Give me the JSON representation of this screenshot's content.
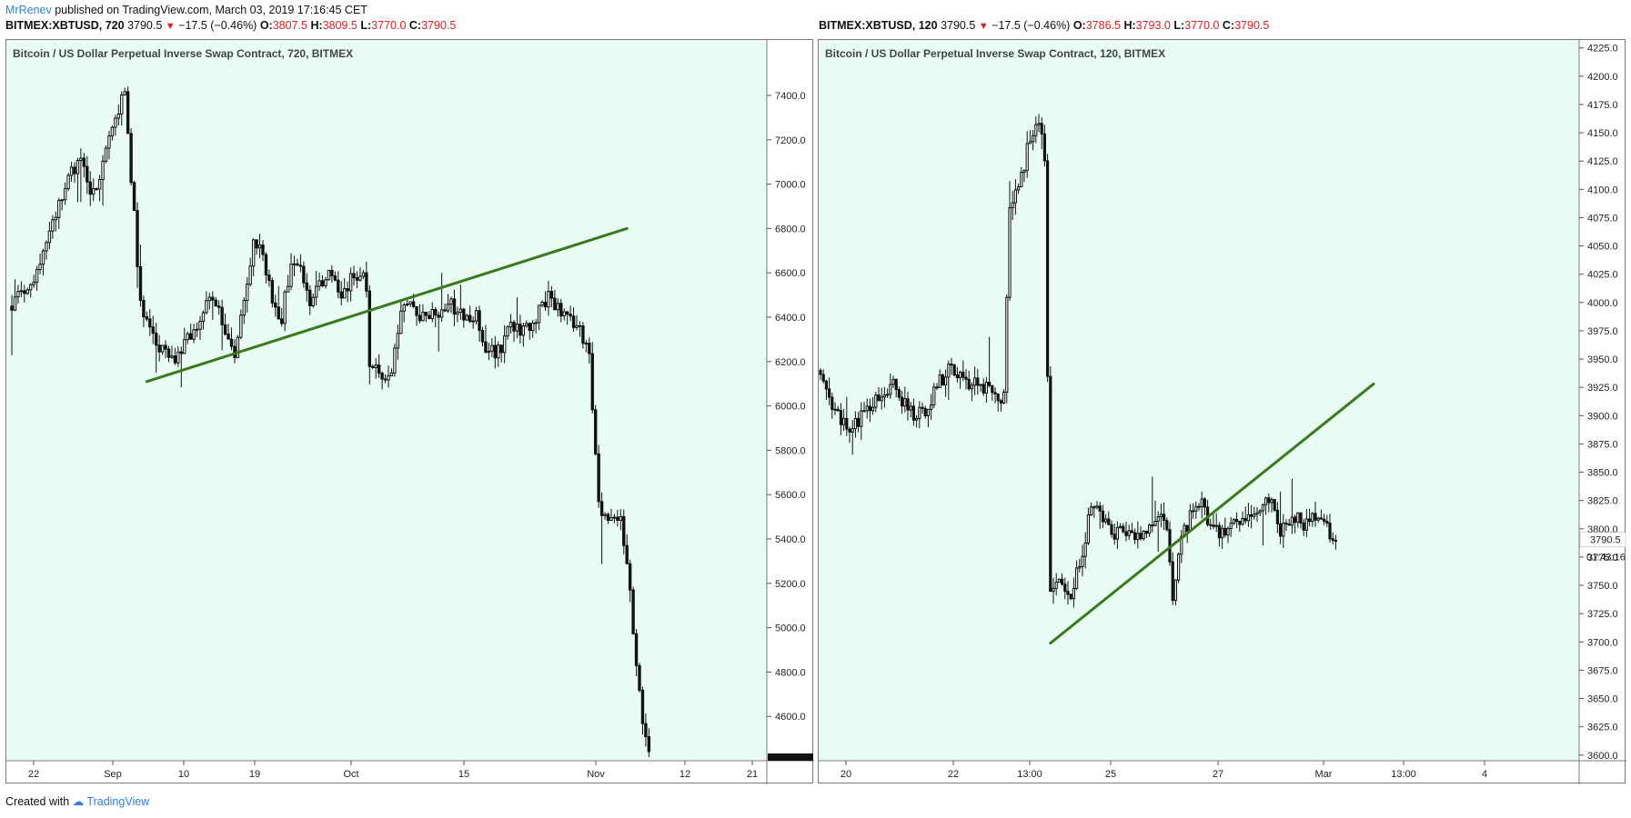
{
  "header": {
    "author": "MrRenev",
    "published_text": "published on TradingView.com, March 03, 2019 17:16:45 CET"
  },
  "footer": {
    "created_with": "Created with",
    "brand": "TradingView"
  },
  "colors": {
    "plot_bg": "#e8fcf4",
    "green_line": "#3a7a1e",
    "down_red": "#e01f1f",
    "brand_blue": "#2f7ed8",
    "candle": "#111111"
  },
  "chart_data": [
    {
      "type": "candlestick",
      "symbol": "BITMEX:XBTUSD",
      "interval": "720",
      "title": "Bitcoin / US Dollar Perpetual Inverse Swap Contract, 720, BITMEX",
      "legend": {
        "symbol_label": "BITMEX:XBTUSD, 720",
        "last": "3790.5",
        "change": "−17.5 (−0.46%)",
        "open": "3807.5",
        "high": "3809.5",
        "low": "3770.0",
        "close": "3790.5"
      },
      "ylim": [
        4400,
        7650
      ],
      "y_ticks": [
        "7400.0",
        "7200.0",
        "7000.0",
        "6800.0",
        "6600.0",
        "6400.0",
        "6200.0",
        "6000.0",
        "5800.0",
        "5600.0",
        "5400.0",
        "5200.0",
        "5000.0",
        "4800.0",
        "4600.0"
      ],
      "x_ticks": [
        "22",
        "Sep",
        "10",
        "19",
        "Oct",
        "15",
        "Nov",
        "12",
        "21"
      ],
      "price_path": [
        [
          0,
          6450
        ],
        [
          3,
          6500
        ],
        [
          6,
          6550
        ],
        [
          10,
          6700
        ],
        [
          14,
          6850
        ],
        [
          18,
          7050
        ],
        [
          22,
          7100
        ],
        [
          26,
          6950
        ],
        [
          30,
          7150
        ],
        [
          33,
          7300
        ],
        [
          36,
          7450
        ],
        [
          37,
          7200
        ],
        [
          39,
          6850
        ],
        [
          41,
          6450
        ],
        [
          44,
          6350
        ],
        [
          47,
          6250
        ],
        [
          52,
          6200
        ],
        [
          56,
          6300
        ],
        [
          60,
          6400
        ],
        [
          64,
          6500
        ],
        [
          68,
          6350
        ],
        [
          71,
          6250
        ],
        [
          74,
          6450
        ],
        [
          77,
          6750
        ],
        [
          80,
          6700
        ],
        [
          83,
          6450
        ],
        [
          86,
          6400
        ],
        [
          89,
          6650
        ],
        [
          92,
          6600
        ],
        [
          95,
          6450
        ],
        [
          98,
          6550
        ],
        [
          101,
          6600
        ],
        [
          104,
          6500
        ],
        [
          107,
          6550
        ],
        [
          110,
          6600
        ],
        [
          113,
          6550
        ],
        [
          114,
          6150
        ],
        [
          117,
          6150
        ],
        [
          121,
          6150
        ],
        [
          124,
          6450
        ],
        [
          127,
          6450
        ],
        [
          131,
          6400
        ],
        [
          136,
          6400
        ],
        [
          140,
          6450
        ],
        [
          144,
          6400
        ],
        [
          148,
          6400
        ],
        [
          151,
          6250
        ],
        [
          155,
          6250
        ],
        [
          159,
          6350
        ],
        [
          163,
          6350
        ],
        [
          167,
          6400
        ],
        [
          171,
          6500
        ],
        [
          174,
          6450
        ],
        [
          177,
          6400
        ],
        [
          181,
          6350
        ],
        [
          184,
          6250
        ],
        [
          187,
          5550
        ],
        [
          190,
          5450
        ],
        [
          194,
          5500
        ],
        [
          197,
          5200
        ],
        [
          199,
          4800
        ],
        [
          201,
          4600
        ],
        [
          203,
          4450
        ]
      ],
      "trendline": {
        "from": [
          43,
          6110
        ],
        "to": [
          196,
          6800
        ]
      }
    },
    {
      "type": "candlestick",
      "symbol": "BITMEX:XBTUSD",
      "interval": "120",
      "title": "Bitcoin / US Dollar Perpetual Inverse Swap Contract, 120, BITMEX",
      "legend": {
        "symbol_label": "BITMEX:XBTUSD, 120",
        "last": "3790.5",
        "change": "−17.5 (−0.46%)",
        "open": "3786.5",
        "high": "3793.0",
        "low": "3770.0",
        "close": "3790.5"
      },
      "ylim": [
        3595,
        4232
      ],
      "y_ticks": [
        "4225.0",
        "4200.0",
        "4175.0",
        "4150.0",
        "4125.0",
        "4100.0",
        "4075.0",
        "4050.0",
        "4025.0",
        "4000.0",
        "3975.0",
        "3950.0",
        "3925.0",
        "3900.0",
        "3875.0",
        "3850.0",
        "3825.0",
        "3800.0",
        "3775.0",
        "3750.0",
        "3725.0",
        "3700.0",
        "3675.0",
        "3650.0",
        "3625.0",
        "3600.0"
      ],
      "x_ticks": [
        "20",
        "22",
        "13:00",
        "25",
        "27",
        "Mar",
        "13:00",
        "4"
      ],
      "last_price_label": "3790.5",
      "countdown_label": "01:43:16",
      "price_path": [
        [
          0,
          3940
        ],
        [
          5,
          3905
        ],
        [
          10,
          3890
        ],
        [
          15,
          3900
        ],
        [
          20,
          3915
        ],
        [
          25,
          3930
        ],
        [
          30,
          3905
        ],
        [
          35,
          3900
        ],
        [
          40,
          3925
        ],
        [
          45,
          3945
        ],
        [
          50,
          3930
        ],
        [
          55,
          3925
        ],
        [
          60,
          3920
        ],
        [
          63,
          3915
        ],
        [
          65,
          4080
        ],
        [
          68,
          4100
        ],
        [
          72,
          4145
        ],
        [
          75,
          4160
        ],
        [
          77,
          4130
        ],
        [
          79,
          3740
        ],
        [
          82,
          3755
        ],
        [
          86,
          3745
        ],
        [
          90,
          3780
        ],
        [
          93,
          3820
        ],
        [
          96,
          3815
        ],
        [
          100,
          3795
        ],
        [
          104,
          3800
        ],
        [
          108,
          3790
        ],
        [
          112,
          3800
        ],
        [
          116,
          3810
        ],
        [
          119,
          3800
        ],
        [
          121,
          3740
        ],
        [
          124,
          3790
        ],
        [
          127,
          3810
        ],
        [
          130,
          3825
        ],
        [
          132,
          3820
        ],
        [
          134,
          3800
        ],
        [
          138,
          3795
        ],
        [
          142,
          3810
        ],
        [
          146,
          3805
        ],
        [
          150,
          3815
        ],
        [
          154,
          3830
        ],
        [
          158,
          3800
        ],
        [
          162,
          3810
        ],
        [
          166,
          3805
        ],
        [
          170,
          3810
        ],
        [
          174,
          3800
        ],
        [
          177,
          3790
        ]
      ],
      "trendline": {
        "from": [
          79,
          3699
        ],
        "to": [
          190,
          3928
        ]
      }
    }
  ]
}
